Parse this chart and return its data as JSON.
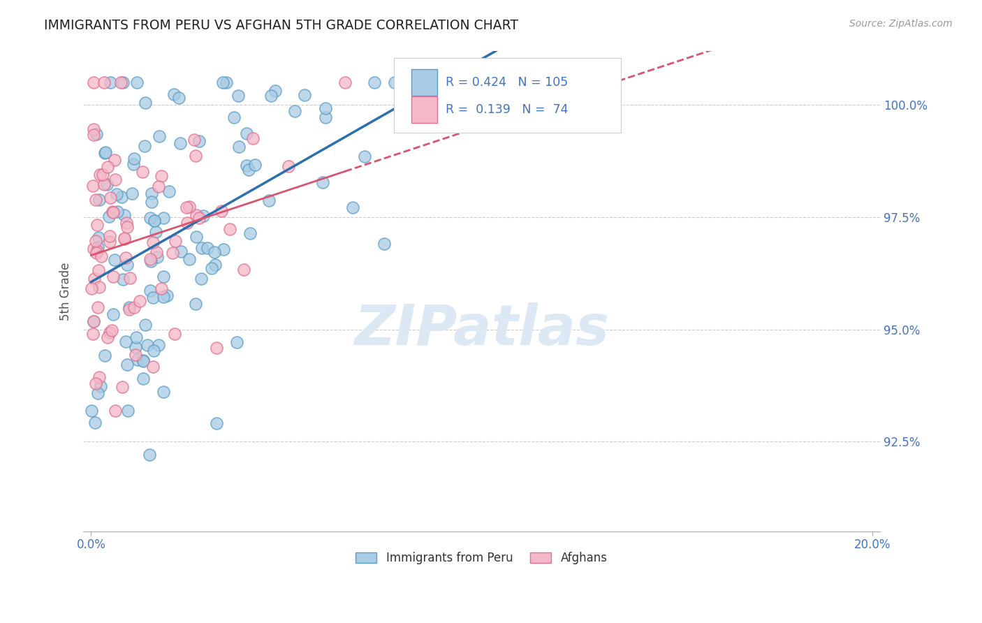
{
  "title": "IMMIGRANTS FROM PERU VS AFGHAN 5TH GRADE CORRELATION CHART",
  "source": "Source: ZipAtlas.com",
  "ylabel": "5th Grade",
  "ytick_labels": [
    "100.0%",
    "97.5%",
    "95.0%",
    "92.5%"
  ],
  "ytick_values": [
    1.0,
    0.975,
    0.95,
    0.925
  ],
  "series1_label": "Immigrants from Peru",
  "series2_label": "Afghans",
  "blue_fill": "#a8cce4",
  "blue_edge": "#5b9dc9",
  "pink_fill": "#f4b8c8",
  "pink_edge": "#e07090",
  "blue_line_color": "#2c6fad",
  "pink_line_color": "#d9546e",
  "text_blue": "#4472c4",
  "background": "#ffffff",
  "legend_r1": "R = 0.424",
  "legend_n1": "N = 105",
  "legend_r2": "R =  0.139",
  "legend_n2": "N =  74",
  "ylim_min": 0.905,
  "ylim_max": 1.012,
  "xlim_min": -0.002,
  "xlim_max": 0.202
}
